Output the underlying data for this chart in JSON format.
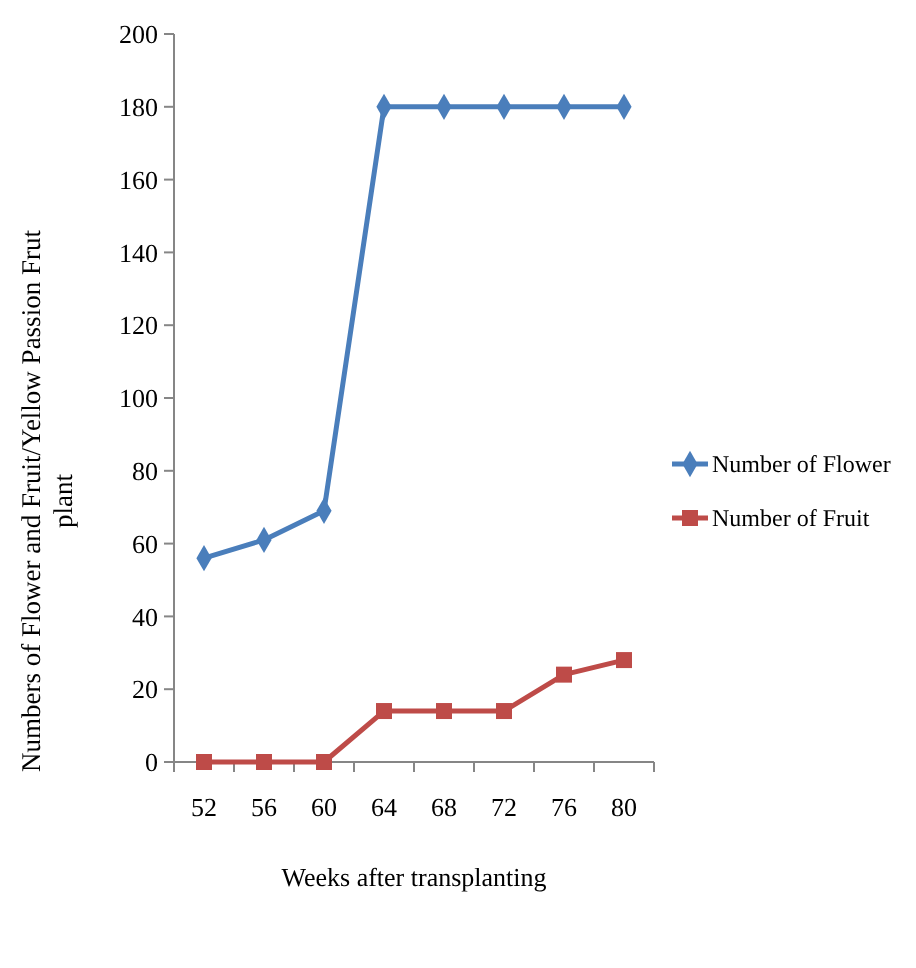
{
  "chart_data": {
    "type": "line",
    "xlabel": "Weeks after transplanting",
    "ylabel": "Numbers of Flower  and Fruit/Yellow Passion Frut plant",
    "categories": [
      "52",
      "56",
      "60",
      "64",
      "68",
      "72",
      "76",
      "80"
    ],
    "series": [
      {
        "name": "Number of Flower",
        "color": "#4a7ebb",
        "marker": "diamond",
        "values": [
          56,
          61,
          69,
          180,
          180,
          180,
          180,
          180
        ]
      },
      {
        "name": "Number  of Fruit",
        "color": "#be4b48",
        "marker": "square",
        "values": [
          0,
          0,
          0,
          14,
          14,
          14,
          24,
          28
        ]
      }
    ],
    "ylim": [
      0,
      200
    ],
    "yticks": [
      0,
      20,
      40,
      60,
      80,
      100,
      120,
      140,
      160,
      180,
      200
    ],
    "grid": false,
    "legend": "right"
  }
}
